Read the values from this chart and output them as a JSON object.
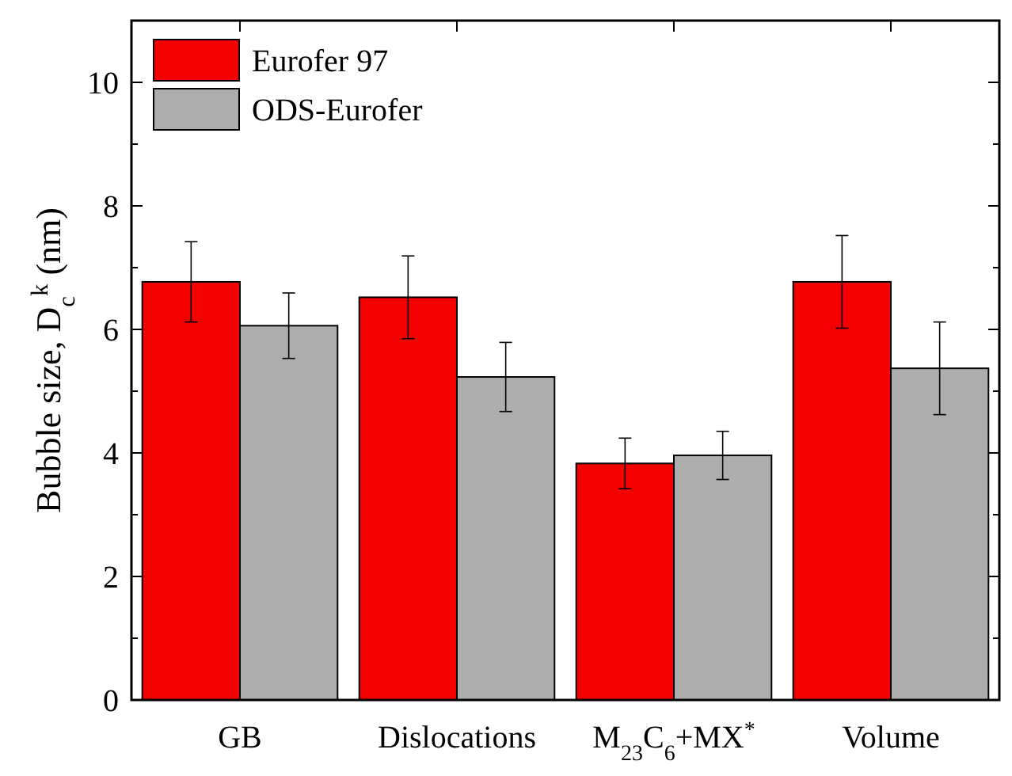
{
  "chart_data": {
    "type": "bar",
    "ylabel": "Bubble size, D$_{c}$$^{k}$ (nm)",
    "categories": [
      "GB",
      "Dislocations",
      "M$_{23}$C$_{6}$+MX$^{*}$",
      "Volume"
    ],
    "series": [
      {
        "name": "Eurofer 97",
        "color": "#f50000",
        "values": [
          6.77,
          6.52,
          3.83,
          6.77
        ],
        "errors": [
          0.65,
          0.67,
          0.41,
          0.75
        ]
      },
      {
        "name": "ODS-Eurofer",
        "color": "#adadad",
        "values": [
          6.06,
          5.23,
          3.96,
          5.37
        ],
        "errors": [
          0.53,
          0.56,
          0.39,
          0.75
        ]
      }
    ],
    "ylim": [
      0,
      11
    ],
    "yticks": [
      0,
      {
        "value": 1,
        "label": null
      },
      2,
      {
        "value": 3,
        "label": null
      },
      4,
      {
        "value": 5,
        "label": null
      },
      6,
      {
        "value": 7,
        "label": null
      },
      8,
      {
        "value": 9,
        "label": null
      },
      10
    ],
    "grid": false,
    "legend": "top left"
  }
}
